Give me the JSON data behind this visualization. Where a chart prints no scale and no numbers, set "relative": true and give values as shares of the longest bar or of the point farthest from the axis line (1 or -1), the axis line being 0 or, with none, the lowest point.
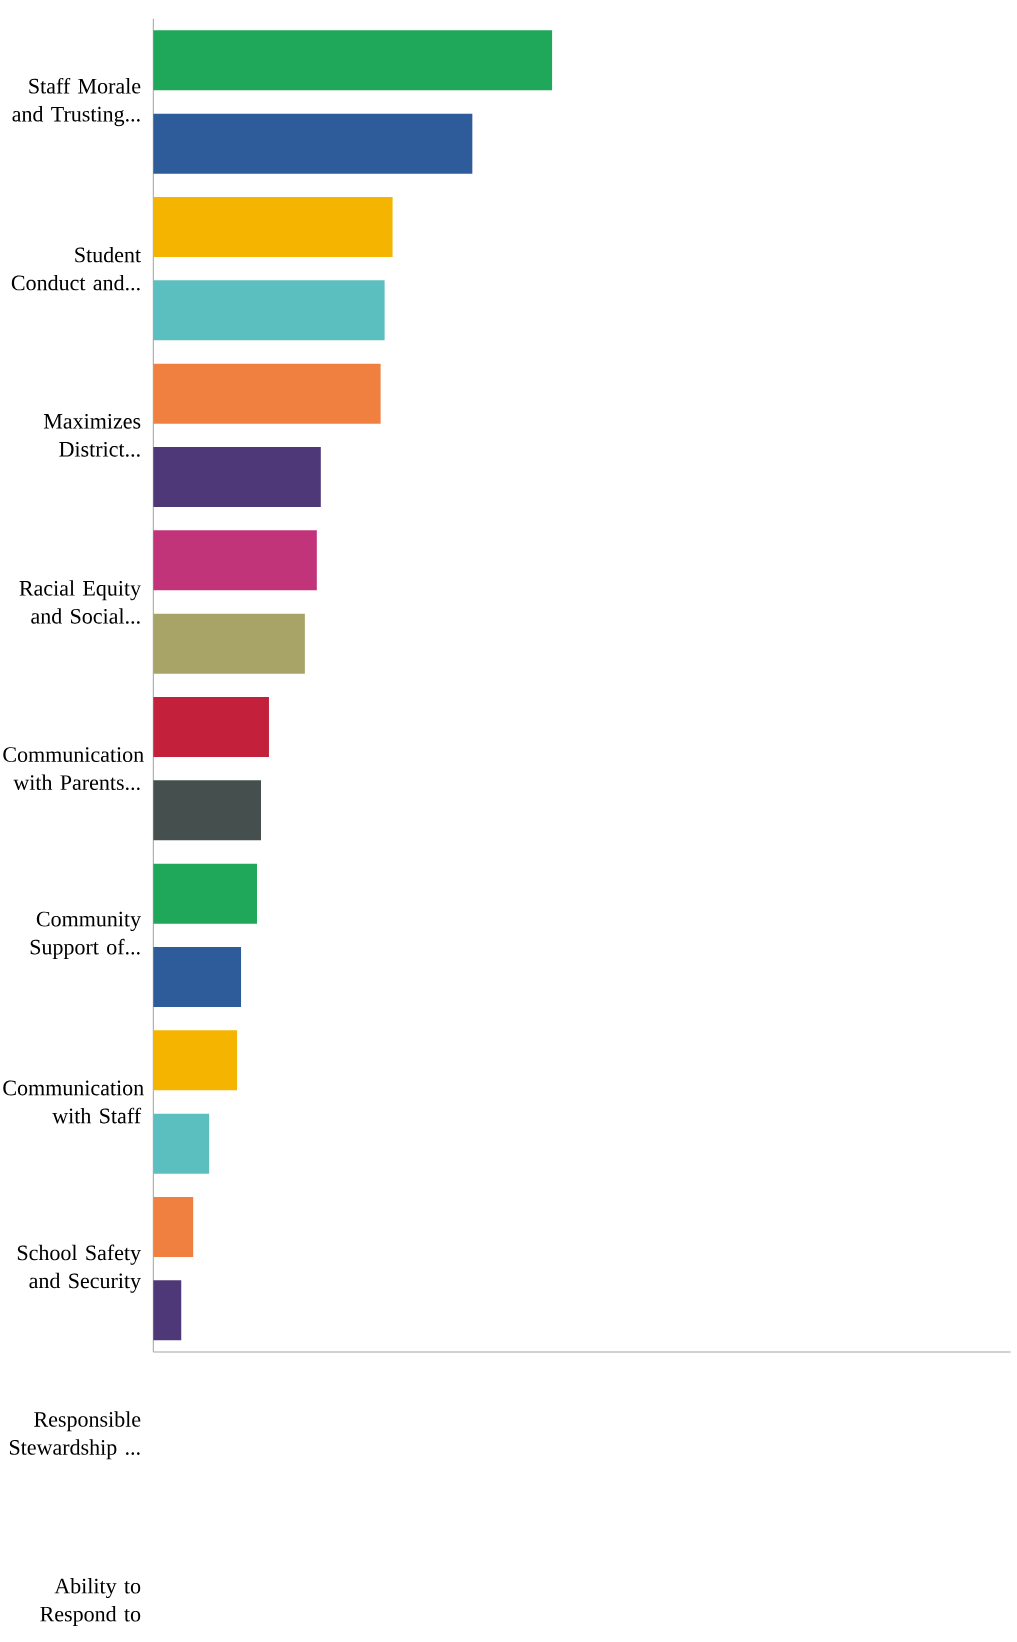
{
  "chart_data": {
    "type": "bar",
    "orientation": "horizontal",
    "relative": true,
    "categories": [
      "Staff Morale and Trusting...",
      null,
      "Student Conduct and...",
      null,
      "Maximizes District...",
      null,
      "Racial Equity and Social...",
      null,
      "Communication with Parents...",
      null,
      "Community Support of...",
      null,
      "Communication with Staff",
      null,
      "School Safety and Security",
      null,
      "Responsible Stewardship ...",
      null,
      "Ability to Respond to",
      null
    ],
    "values": [
      1,
      0.8,
      0.6,
      0.58,
      0.57,
      0.42,
      0.41,
      0.38,
      0.29,
      0.27,
      0.26,
      0.22,
      0.21,
      0.14,
      0.1,
      0.07,
      null,
      null,
      null,
      null
    ],
    "colors": [
      "#1fa85a",
      "#2e5c9a",
      "#f5b400",
      "#5bbfbf",
      "#f08040",
      "#4e3878",
      "#c2347a",
      "#a8a468",
      "#c3203c",
      "#45504e",
      "#1fa85a",
      "#2e5c9a",
      "#f5b400",
      "#5bbfbf",
      "#f08040",
      "#4e3878",
      "#888888",
      "#888888",
      "#888888",
      "#888888"
    ]
  }
}
